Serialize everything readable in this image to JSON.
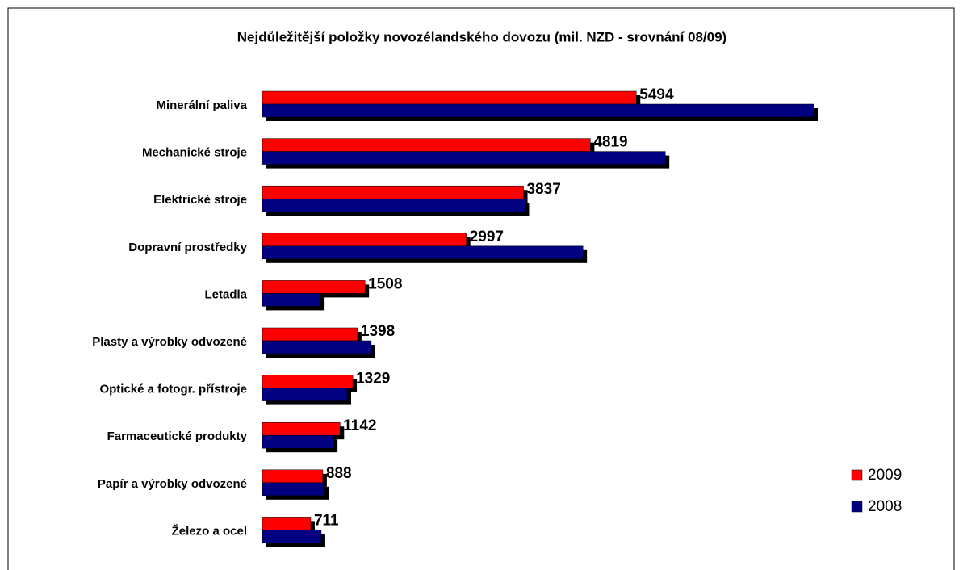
{
  "chart_data": {
    "type": "bar",
    "orientation": "horizontal",
    "title": "Nejdůležitější položky novozélandského dovozu (mil. NZD - srovnání 08/09)",
    "categories": [
      "Minerální paliva",
      "Mechanické stroje",
      "Elektrické stroje",
      "Dopravní prostředky",
      "Letadla",
      "Plasty a výrobky odvozené",
      "Optické a fotogr. přístroje",
      "Farmaceutické produkty",
      "Papír a výrobky odvozené",
      "Železo a ocel"
    ],
    "series": [
      {
        "name": "2009",
        "color": "#ff0000",
        "values": [
          5494,
          4819,
          3837,
          2997,
          1508,
          1398,
          1329,
          1142,
          888,
          711
        ]
      },
      {
        "name": "2008",
        "color": "#000080",
        "values": [
          8100,
          5920,
          3860,
          4710,
          855,
          1600,
          1245,
          1045,
          915,
          865
        ]
      }
    ],
    "legend": "right"
  }
}
